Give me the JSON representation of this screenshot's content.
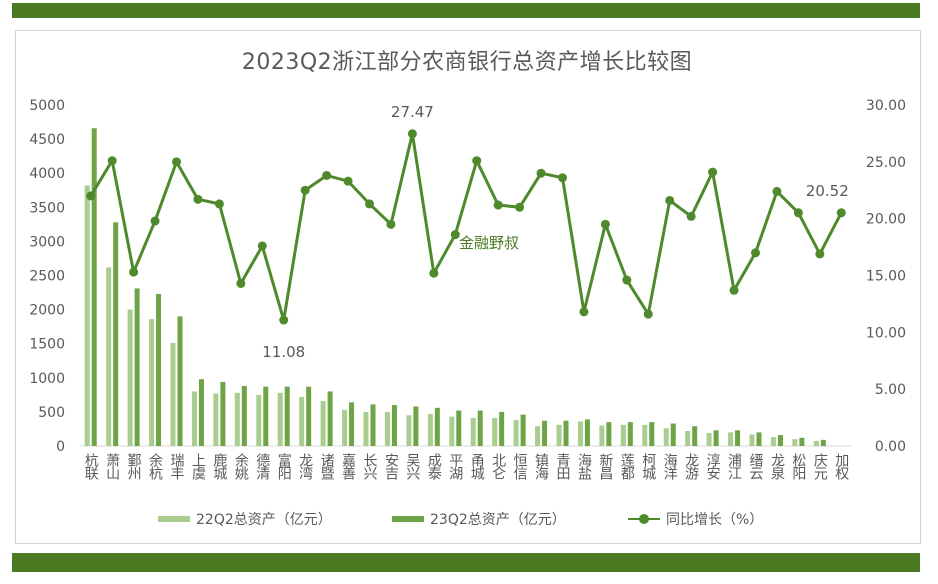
{
  "title": "2023Q2浙江部分农商银行总资产增长比较图",
  "watermark": "金融野叔",
  "colors": {
    "bar_bar": "#4b7a23",
    "bar_22": "#a9cd8e",
    "bar_23": "#6ea445",
    "line": "#4e8a2c",
    "axis_text": "#595959",
    "gridline": "#d9d9d9"
  },
  "legend": {
    "s22": "22Q2总资产（亿元）",
    "s23": "23Q2总资产（亿元）",
    "growth": "同比增长（%）"
  },
  "chart_data": {
    "type": "bar",
    "title": "2023Q2浙江部分农商银行总资产增长比较图",
    "categories": [
      "杭联",
      "萧山",
      "鄞州",
      "余杭",
      "瑞丰",
      "上虞",
      "鹿城",
      "余姚",
      "德清",
      "富阳",
      "龙湾",
      "诸暨",
      "嘉善",
      "长兴",
      "安吉",
      "吴兴",
      "成泰",
      "平湖",
      "甬城",
      "北仑",
      "恒信",
      "镇海",
      "青田",
      "海盐",
      "新昌",
      "莲都",
      "柯城",
      "海洋",
      "龙游",
      "淳安",
      "浦江",
      "缙云",
      "龙泉",
      "松阳",
      "庆元",
      "加权"
    ],
    "series": [
      {
        "name": "22Q2总资产（亿元）",
        "axis": "left",
        "kind": "bar",
        "values": [
          3820,
          2620,
          2000,
          1860,
          1510,
          800,
          770,
          780,
          750,
          780,
          720,
          660,
          530,
          500,
          500,
          450,
          470,
          430,
          410,
          410,
          380,
          290,
          310,
          360,
          300,
          310,
          310,
          260,
          220,
          190,
          200,
          170,
          130,
          100,
          75,
          0
        ]
      },
      {
        "name": "23Q2总资产（亿元）",
        "axis": "left",
        "kind": "bar",
        "values": [
          4660,
          3280,
          2310,
          2230,
          1900,
          980,
          940,
          880,
          870,
          870,
          870,
          800,
          640,
          610,
          600,
          580,
          560,
          520,
          520,
          500,
          460,
          370,
          370,
          390,
          350,
          350,
          350,
          330,
          290,
          230,
          230,
          200,
          160,
          120,
          90,
          0
        ]
      },
      {
        "name": "同比增长（%）",
        "axis": "right",
        "kind": "line",
        "values": [
          22.0,
          25.1,
          15.3,
          19.8,
          25.0,
          21.7,
          21.3,
          14.3,
          17.6,
          11.08,
          22.5,
          23.8,
          23.3,
          21.3,
          19.5,
          27.47,
          15.2,
          18.6,
          25.1,
          21.2,
          21.0,
          24.0,
          23.6,
          11.8,
          19.5,
          14.6,
          11.6,
          21.6,
          20.2,
          24.1,
          13.7,
          17.0,
          22.4,
          20.52,
          16.9,
          20.52
        ]
      }
    ],
    "y_left": {
      "min": 0,
      "max": 5000,
      "ticks": [
        "0",
        "500",
        "1000",
        "1500",
        "2000",
        "2500",
        "3000",
        "3500",
        "4000",
        "4500",
        "5000"
      ]
    },
    "y_right": {
      "min": 0,
      "max": 30,
      "ticks": [
        "0.00",
        "5.00",
        "10.00",
        "15.00",
        "20.00",
        "25.00",
        "30.00"
      ]
    },
    "data_labels": [
      {
        "series": "同比增长（%）",
        "category": "吴兴",
        "text": "27.47"
      },
      {
        "series": "同比增长（%）",
        "category": "富阳",
        "text": "11.08"
      },
      {
        "series": "同比增长（%）",
        "category": "加权",
        "text": "20.52"
      }
    ],
    "grid": false,
    "legend_position": "bottom"
  }
}
